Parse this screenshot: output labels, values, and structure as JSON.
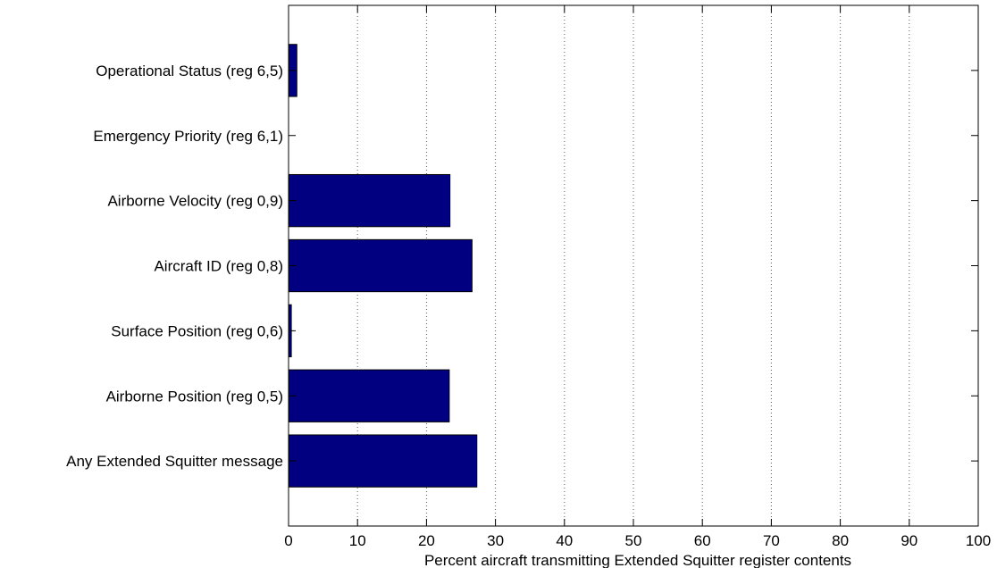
{
  "chart_data": {
    "type": "bar",
    "orientation": "horizontal",
    "title": "",
    "xlabel": "Percent aircraft transmitting Extended Squitter register contents",
    "ylabel": "",
    "xlim": [
      0,
      100
    ],
    "xticks": [
      0,
      10,
      20,
      30,
      40,
      50,
      60,
      70,
      80,
      90,
      100
    ],
    "grid": "vertical-dotted",
    "categories": [
      "Any Extended Squitter message",
      "Airborne Position (reg 0,5)",
      "Surface Position (reg 0,6)",
      "Aircraft ID (reg 0,8)",
      "Airborne Velocity (reg 0,9)",
      "Emergency Priority (reg 6,1)",
      "Operational Status (reg 6,5)"
    ],
    "values": [
      27.3,
      23.3,
      0.4,
      26.6,
      23.4,
      0,
      1.2
    ],
    "colors": {
      "bar": "#000080",
      "bar_edge": "#000000",
      "axis": "#000000",
      "grid": "#555555"
    }
  }
}
